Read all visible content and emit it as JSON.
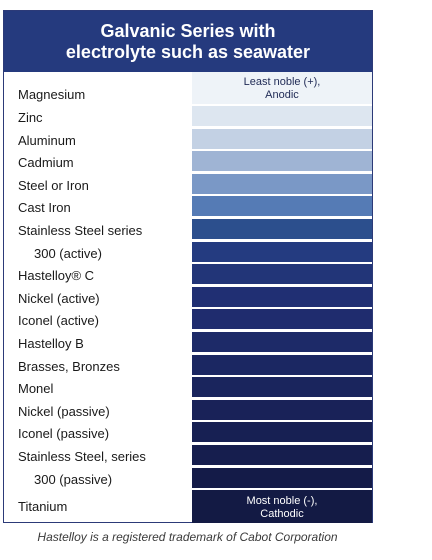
{
  "title": {
    "line1": "Galvanic Series with",
    "line2": "electrolyte such as seawater"
  },
  "series": [
    {
      "label": "Magnesium",
      "color": "#eef3f8",
      "caption_line1": "Least noble (+),",
      "caption_line2": "Anodic",
      "caption_color": "#1f2a55"
    },
    {
      "label": "Zinc",
      "color": "#dde6f0"
    },
    {
      "label": "Aluminum",
      "color": "#c3d1e4"
    },
    {
      "label": "Cadmium",
      "color": "#9fb4d4"
    },
    {
      "label": "Steel or Iron",
      "color": "#7a98c6"
    },
    {
      "label": "Cast Iron",
      "color": "#557bb5"
    },
    {
      "label": "Stainless Steel series",
      "color": "#2c4f8d"
    },
    {
      "label": "300 (active)",
      "color": "#243b80",
      "indent": true
    },
    {
      "label": "Hastelloy® C",
      "color": "#223578"
    },
    {
      "label": "Nickel (active)",
      "color": "#202f73"
    },
    {
      "label": "Iconel (active)",
      "color": "#1f2c6e"
    },
    {
      "label": "Hastelloy B",
      "color": "#1d2a68"
    },
    {
      "label": "Brasses, Bronzes",
      "color": "#1b2762"
    },
    {
      "label": "Monel",
      "color": "#1a255d"
    },
    {
      "label": "Nickel (passive)",
      "color": "#192258"
    },
    {
      "label": "Iconel (passive)",
      "color": "#172053"
    },
    {
      "label": "Stainless Steel, series",
      "color": "#161e4e"
    },
    {
      "label": "300 (passive)",
      "color": "#141b48",
      "indent": true
    },
    {
      "label": "Titanium",
      "color": "#131a44",
      "caption_line1": "Most noble (-),",
      "caption_line2": "Cathodic",
      "caption_color": "#ffffff"
    }
  ],
  "footnote": "Hastelloy is a registered trademark of Cabot Corporation"
}
